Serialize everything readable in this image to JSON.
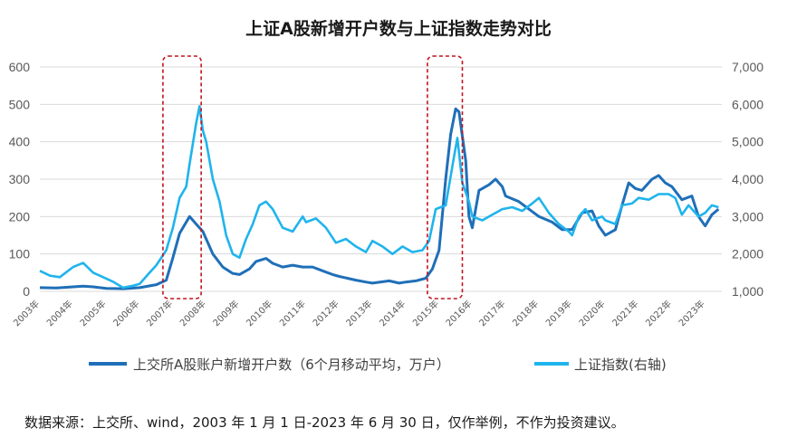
{
  "chart_data": {
    "type": "line",
    "title": "上证A股新增开户数与上证指数走势对比",
    "source_note": "数据来源：上交所、wind，2003 年 1 月 1 日-2023 年 6 月 30 日，仅作举例，不作为投资建议。",
    "x_labels": [
      "2003年",
      "2004年",
      "2005年",
      "2006年",
      "2007年",
      "2008年",
      "2009年",
      "2010年",
      "2011年",
      "2012年",
      "2013年",
      "2014年",
      "2015年",
      "2016年",
      "2017年",
      "2018年",
      "2019年",
      "2020年",
      "2021年",
      "2022年",
      "2023年"
    ],
    "x_range": [
      2003.0,
      2023.5
    ],
    "y_left": {
      "ticks": [
        0,
        100,
        200,
        300,
        400,
        500,
        600
      ],
      "labels": [
        "0",
        "100",
        "200",
        "300",
        "400",
        "500",
        "600"
      ],
      "range": [
        0,
        600
      ]
    },
    "y_right": {
      "ticks": [
        1000,
        2000,
        3000,
        4000,
        5000,
        6000,
        7000
      ],
      "labels": [
        "1,000",
        "2,000",
        "3,000",
        "4,000",
        "5,000",
        "6,000",
        "7,000"
      ],
      "range": [
        1000,
        7000
      ]
    },
    "grid": "horizontal",
    "legend_position": "bottom",
    "highlight_ranges": [
      [
        2006.7,
        2007.85
      ],
      [
        2014.65,
        2015.7
      ]
    ],
    "series": [
      {
        "name": "上交所A股账户新增开户数（6个月移动平均，万户）",
        "axis": "left",
        "color": "#1f6fb8",
        "points": [
          [
            2003.0,
            10
          ],
          [
            2003.5,
            9
          ],
          [
            2004.0,
            12
          ],
          [
            2004.3,
            14
          ],
          [
            2004.6,
            12
          ],
          [
            2005.0,
            8
          ],
          [
            2005.5,
            7
          ],
          [
            2006.0,
            10
          ],
          [
            2006.5,
            18
          ],
          [
            2006.8,
            30
          ],
          [
            2007.0,
            90
          ],
          [
            2007.2,
            155
          ],
          [
            2007.5,
            200
          ],
          [
            2007.7,
            180
          ],
          [
            2007.9,
            160
          ],
          [
            2008.2,
            100
          ],
          [
            2008.5,
            65
          ],
          [
            2008.8,
            48
          ],
          [
            2009.0,
            45
          ],
          [
            2009.3,
            60
          ],
          [
            2009.5,
            80
          ],
          [
            2009.8,
            88
          ],
          [
            2010.0,
            75
          ],
          [
            2010.3,
            65
          ],
          [
            2010.6,
            70
          ],
          [
            2010.9,
            65
          ],
          [
            2011.2,
            65
          ],
          [
            2011.5,
            55
          ],
          [
            2011.8,
            45
          ],
          [
            2012.0,
            40
          ],
          [
            2012.5,
            30
          ],
          [
            2012.8,
            25
          ],
          [
            2013.0,
            22
          ],
          [
            2013.5,
            28
          ],
          [
            2013.8,
            22
          ],
          [
            2014.0,
            25
          ],
          [
            2014.3,
            28
          ],
          [
            2014.6,
            35
          ],
          [
            2014.8,
            60
          ],
          [
            2015.0,
            110
          ],
          [
            2015.2,
            300
          ],
          [
            2015.35,
            420
          ],
          [
            2015.5,
            488
          ],
          [
            2015.6,
            480
          ],
          [
            2015.8,
            350
          ],
          [
            2015.9,
            200
          ],
          [
            2016.0,
            170
          ],
          [
            2016.2,
            270
          ],
          [
            2016.5,
            285
          ],
          [
            2016.7,
            300
          ],
          [
            2016.9,
            280
          ],
          [
            2017.0,
            255
          ],
          [
            2017.4,
            240
          ],
          [
            2017.7,
            220
          ],
          [
            2018.0,
            200
          ],
          [
            2018.4,
            185
          ],
          [
            2018.7,
            165
          ],
          [
            2019.0,
            165
          ],
          [
            2019.3,
            210
          ],
          [
            2019.6,
            215
          ],
          [
            2019.8,
            175
          ],
          [
            2020.0,
            150
          ],
          [
            2020.3,
            165
          ],
          [
            2020.5,
            230
          ],
          [
            2020.7,
            290
          ],
          [
            2020.9,
            275
          ],
          [
            2021.1,
            270
          ],
          [
            2021.4,
            300
          ],
          [
            2021.6,
            310
          ],
          [
            2021.8,
            290
          ],
          [
            2022.0,
            280
          ],
          [
            2022.3,
            245
          ],
          [
            2022.6,
            255
          ],
          [
            2022.8,
            200
          ],
          [
            2023.0,
            175
          ],
          [
            2023.2,
            205
          ],
          [
            2023.4,
            220
          ]
        ]
      },
      {
        "name": "上证指数(右轴)",
        "axis": "right",
        "color": "#1fb4ec",
        "points": [
          [
            2003.0,
            1550
          ],
          [
            2003.3,
            1420
          ],
          [
            2003.6,
            1380
          ],
          [
            2004.0,
            1650
          ],
          [
            2004.3,
            1760
          ],
          [
            2004.6,
            1500
          ],
          [
            2004.9,
            1380
          ],
          [
            2005.2,
            1260
          ],
          [
            2005.5,
            1100
          ],
          [
            2005.8,
            1150
          ],
          [
            2006.0,
            1200
          ],
          [
            2006.3,
            1500
          ],
          [
            2006.5,
            1700
          ],
          [
            2006.8,
            2100
          ],
          [
            2007.0,
            2700
          ],
          [
            2007.2,
            3500
          ],
          [
            2007.4,
            3800
          ],
          [
            2007.5,
            4400
          ],
          [
            2007.7,
            5500
          ],
          [
            2007.8,
            5950
          ],
          [
            2007.9,
            5300
          ],
          [
            2008.0,
            5000
          ],
          [
            2008.2,
            4000
          ],
          [
            2008.4,
            3400
          ],
          [
            2008.6,
            2500
          ],
          [
            2008.8,
            2000
          ],
          [
            2009.0,
            1900
          ],
          [
            2009.2,
            2400
          ],
          [
            2009.4,
            2800
          ],
          [
            2009.6,
            3300
          ],
          [
            2009.8,
            3400
          ],
          [
            2010.0,
            3200
          ],
          [
            2010.3,
            2700
          ],
          [
            2010.6,
            2600
          ],
          [
            2010.9,
            3000
          ],
          [
            2011.0,
            2850
          ],
          [
            2011.3,
            2950
          ],
          [
            2011.6,
            2700
          ],
          [
            2011.9,
            2300
          ],
          [
            2012.2,
            2400
          ],
          [
            2012.5,
            2200
          ],
          [
            2012.8,
            2050
          ],
          [
            2013.0,
            2350
          ],
          [
            2013.3,
            2200
          ],
          [
            2013.6,
            2000
          ],
          [
            2013.9,
            2200
          ],
          [
            2014.2,
            2050
          ],
          [
            2014.5,
            2100
          ],
          [
            2014.7,
            2350
          ],
          [
            2014.9,
            3200
          ],
          [
            2015.2,
            3300
          ],
          [
            2015.45,
            4600
          ],
          [
            2015.55,
            5100
          ],
          [
            2015.7,
            3900
          ],
          [
            2015.9,
            3400
          ],
          [
            2016.0,
            3000
          ],
          [
            2016.3,
            2900
          ],
          [
            2016.6,
            3050
          ],
          [
            2016.9,
            3200
          ],
          [
            2017.2,
            3250
          ],
          [
            2017.5,
            3150
          ],
          [
            2017.8,
            3350
          ],
          [
            2018.0,
            3500
          ],
          [
            2018.3,
            3100
          ],
          [
            2018.6,
            2800
          ],
          [
            2018.9,
            2600
          ],
          [
            2019.0,
            2500
          ],
          [
            2019.2,
            3000
          ],
          [
            2019.4,
            3200
          ],
          [
            2019.6,
            2900
          ],
          [
            2019.9,
            3000
          ],
          [
            2020.0,
            2900
          ],
          [
            2020.3,
            2800
          ],
          [
            2020.5,
            3300
          ],
          [
            2020.8,
            3350
          ],
          [
            2021.0,
            3500
          ],
          [
            2021.3,
            3450
          ],
          [
            2021.6,
            3600
          ],
          [
            2021.9,
            3600
          ],
          [
            2022.1,
            3500
          ],
          [
            2022.3,
            3050
          ],
          [
            2022.5,
            3300
          ],
          [
            2022.8,
            3000
          ],
          [
            2023.0,
            3100
          ],
          [
            2023.2,
            3300
          ],
          [
            2023.4,
            3250
          ]
        ]
      }
    ]
  }
}
